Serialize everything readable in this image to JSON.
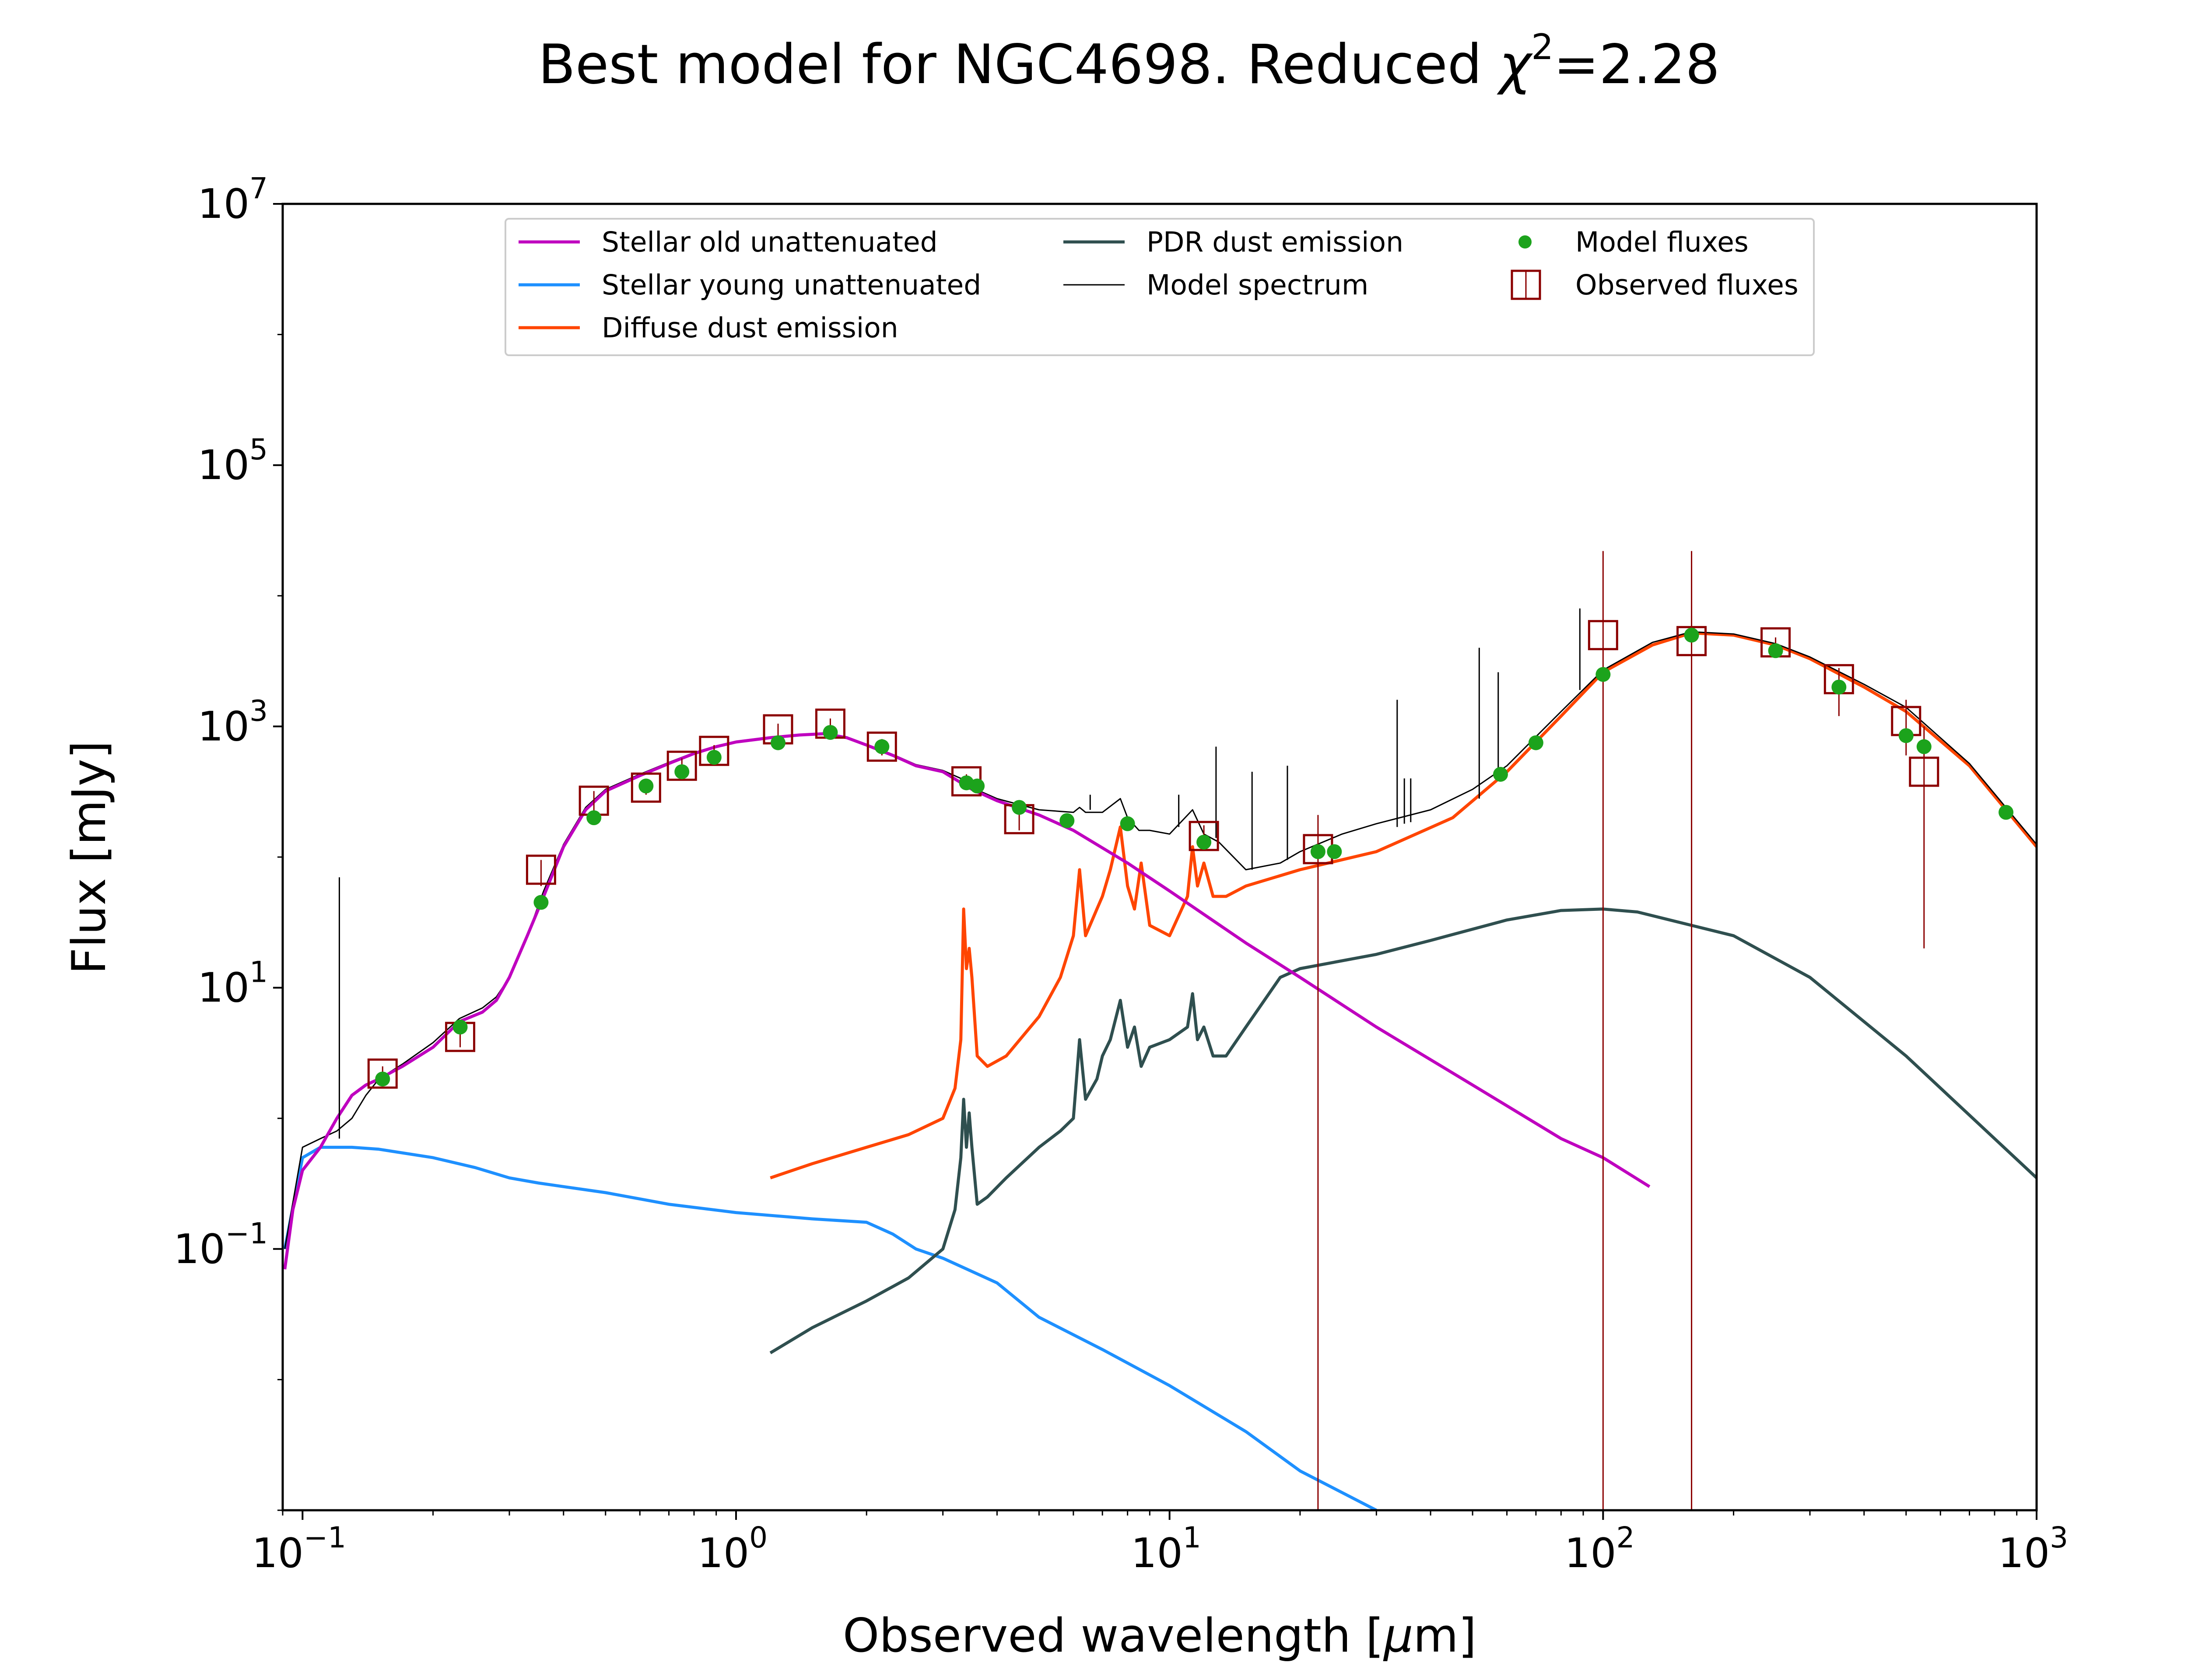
{
  "chart_data": {
    "type": "line",
    "title": "Best model for NGC4698. Reduced χ²=2.28",
    "title_parts": {
      "main": "Best model for NGC4698. Reduced ",
      "chi": "χ",
      "sup": "2",
      "tail": "=2.28"
    },
    "xlabel": "Observed wavelength [μm]",
    "xlabel_parts": {
      "main": "Observed wavelength [",
      "mu": "μ",
      "tail": "m]"
    },
    "ylabel": "Flux [mJy]",
    "x_scale": "log",
    "y_scale": "log",
    "xlim": [
      0.09,
      1000
    ],
    "ylim": [
      0.001,
      10000000
    ],
    "xticks": [
      {
        "value": 0.1,
        "base": "10",
        "exp": "−1"
      },
      {
        "value": 1,
        "base": "10",
        "exp": "0"
      },
      {
        "value": 10,
        "base": "10",
        "exp": "1"
      },
      {
        "value": 100,
        "base": "10",
        "exp": "2"
      },
      {
        "value": 1000,
        "base": "10",
        "exp": "3"
      }
    ],
    "yticks": [
      {
        "value": 0.1,
        "base": "10",
        "exp": "−1"
      },
      {
        "value": 10,
        "base": "10",
        "exp": "1"
      },
      {
        "value": 1000,
        "base": "10",
        "exp": "3"
      },
      {
        "value": 100000,
        "base": "10",
        "exp": "5"
      },
      {
        "value": 10000000,
        "base": "10",
        "exp": "7"
      }
    ],
    "legend_position": "top-center",
    "legend": [
      {
        "key": "stellar_old",
        "label": "Stellar old unattenuated"
      },
      {
        "key": "stellar_young",
        "label": "Stellar young unattenuated"
      },
      {
        "key": "diffuse_dust",
        "label": "Diffuse dust emission"
      },
      {
        "key": "pdr_dust",
        "label": "PDR dust emission"
      },
      {
        "key": "model_spectrum",
        "label": "Model spectrum"
      },
      {
        "key": "model_fluxes",
        "label": "Model fluxes"
      },
      {
        "key": "observed_fluxes",
        "label": "Observed fluxes"
      }
    ],
    "colors": {
      "stellar_old": "#bf00bf",
      "stellar_young": "#1e90ff",
      "diffuse_dust": "#ff4500",
      "pdr_dust": "#2f4f4f",
      "model_spectrum": "#000000",
      "model_fluxes": "#1ca31c",
      "observed_fluxes": "#8b0000"
    },
    "series": [
      {
        "key": "stellar_old",
        "x": [
          0.091,
          0.095,
          0.1,
          0.11,
          0.12,
          0.13,
          0.14,
          0.15,
          0.17,
          0.2,
          0.23,
          0.26,
          0.28,
          0.3,
          0.33,
          0.36,
          0.4,
          0.45,
          0.5,
          0.6,
          0.7,
          0.8,
          0.9,
          1.0,
          1.2,
          1.4,
          1.6,
          1.8,
          2.0,
          2.3,
          2.6,
          3.0,
          3.5,
          4.0,
          5.0,
          6.0,
          8.0,
          10,
          15,
          20,
          30,
          50,
          80,
          100,
          128
        ],
        "y": [
          0.07,
          0.2,
          0.4,
          0.6,
          1.0,
          1.5,
          1.8,
          2.0,
          2.5,
          3.5,
          5.5,
          6.5,
          8.0,
          12,
          25,
          50,
          120,
          230,
          320,
          420,
          520,
          620,
          700,
          760,
          820,
          860,
          880,
          820,
          720,
          600,
          500,
          450,
          330,
          270,
          210,
          160,
          90,
          55,
          22,
          12,
          5,
          1.8,
          0.7,
          0.5,
          0.3
        ]
      },
      {
        "key": "stellar_young",
        "x": [
          0.091,
          0.1,
          0.11,
          0.13,
          0.15,
          0.2,
          0.25,
          0.3,
          0.35,
          0.4,
          0.5,
          0.7,
          1.0,
          1.5,
          2.0,
          2.3,
          2.6,
          3.0,
          4.0,
          5.0,
          7.0,
          10,
          15,
          20,
          30
        ],
        "y": [
          0.1,
          0.5,
          0.6,
          0.6,
          0.58,
          0.5,
          0.42,
          0.35,
          0.32,
          0.3,
          0.27,
          0.22,
          0.19,
          0.17,
          0.16,
          0.13,
          0.1,
          0.085,
          0.055,
          0.03,
          0.017,
          0.009,
          0.004,
          0.002,
          0.001
        ]
      },
      {
        "key": "diffuse_dust",
        "x": [
          1.2,
          1.5,
          2.0,
          2.5,
          3.0,
          3.2,
          3.3,
          3.35,
          3.4,
          3.45,
          3.5,
          3.6,
          3.8,
          4.2,
          5.0,
          5.6,
          6.0,
          6.2,
          6.4,
          6.8,
          7.0,
          7.3,
          7.7,
          8.0,
          8.3,
          8.6,
          9.0,
          10,
          11,
          11.3,
          11.6,
          12,
          12.6,
          13.5,
          15,
          20,
          30,
          45,
          60,
          80,
          100,
          130,
          160,
          200,
          250,
          300,
          400,
          500,
          700,
          1000
        ],
        "y": [
          0.35,
          0.45,
          0.6,
          0.75,
          1.0,
          1.7,
          4.0,
          40,
          14,
          20,
          12,
          3.0,
          2.5,
          3.0,
          6.0,
          12,
          25,
          80,
          25,
          40,
          50,
          80,
          170,
          60,
          40,
          90,
          30,
          25,
          50,
          120,
          60,
          90,
          50,
          50,
          60,
          80,
          110,
          200,
          450,
          1200,
          2600,
          4200,
          5200,
          5000,
          4200,
          3300,
          2000,
          1300,
          500,
          120
        ]
      },
      {
        "key": "pdr_dust",
        "x": [
          1.2,
          1.5,
          2.0,
          2.5,
          3.0,
          3.2,
          3.3,
          3.35,
          3.4,
          3.45,
          3.5,
          3.6,
          3.8,
          4.2,
          5.0,
          5.6,
          6.0,
          6.2,
          6.4,
          6.8,
          7.0,
          7.3,
          7.7,
          8.0,
          8.3,
          8.6,
          9.0,
          10,
          11,
          11.3,
          11.6,
          12,
          12.6,
          13.5,
          15,
          18,
          20,
          30,
          40,
          60,
          80,
          100,
          120,
          160,
          200,
          300,
          500,
          1000
        ],
        "y": [
          0.016,
          0.025,
          0.04,
          0.06,
          0.1,
          0.2,
          0.5,
          1.4,
          0.6,
          1.1,
          0.6,
          0.22,
          0.25,
          0.35,
          0.6,
          0.8,
          1.0,
          4.0,
          1.4,
          2.0,
          3.0,
          4.0,
          8.0,
          3.5,
          5.0,
          2.5,
          3.5,
          4.0,
          5.0,
          9.0,
          4.0,
          5.0,
          3.0,
          3.0,
          5.0,
          12,
          14,
          18,
          23,
          33,
          39,
          40,
          38,
          30,
          25,
          12,
          3.0,
          0.35
        ]
      },
      {
        "key": "model_spectrum",
        "x": [
          0.091,
          0.1,
          0.11,
          0.12,
          0.13,
          0.14,
          0.15,
          0.17,
          0.2,
          0.23,
          0.26,
          0.28,
          0.3,
          0.33,
          0.36,
          0.4,
          0.45,
          0.5,
          0.6,
          0.7,
          0.8,
          0.9,
          1.0,
          1.2,
          1.4,
          1.6,
          1.8,
          2.0,
          2.3,
          2.6,
          3.0,
          3.3,
          3.5,
          4.0,
          5.0,
          6.0,
          6.2,
          6.4,
          7.0,
          7.7,
          8.0,
          8.5,
          9.0,
          10,
          11.3,
          12,
          13,
          15,
          18,
          20,
          25,
          30,
          40,
          50,
          60,
          80,
          100,
          130,
          160,
          200,
          250,
          300,
          400,
          500,
          700,
          1000
        ],
        "y": [
          0.1,
          0.6,
          0.7,
          0.8,
          1.0,
          1.5,
          2.0,
          2.6,
          3.8,
          5.8,
          7.0,
          8.5,
          12,
          25,
          55,
          125,
          240,
          330,
          430,
          530,
          630,
          710,
          770,
          830,
          870,
          890,
          830,
          730,
          610,
          510,
          460,
          400,
          340,
          280,
          230,
          220,
          240,
          220,
          220,
          280,
          200,
          160,
          160,
          150,
          230,
          150,
          130,
          80,
          90,
          110,
          150,
          180,
          230,
          330,
          500,
          1300,
          2700,
          4400,
          5300,
          5100,
          4300,
          3400,
          2100,
          1400,
          520,
          125
        ]
      }
    ],
    "spectrum_lines": [
      {
        "x": 0.1216,
        "y_low": 0.7,
        "y_high": 70
      },
      {
        "x": 6.56,
        "y_low": 230,
        "y_high": 300
      },
      {
        "x": 10.5,
        "y_low": 170,
        "y_high": 300
      },
      {
        "x": 12.8,
        "y_low": 140,
        "y_high": 700
      },
      {
        "x": 15.5,
        "y_low": 80,
        "y_high": 450
      },
      {
        "x": 18.7,
        "y_low": 95,
        "y_high": 500
      },
      {
        "x": 33.5,
        "y_low": 170,
        "y_high": 1600
      },
      {
        "x": 34.8,
        "y_low": 180,
        "y_high": 400
      },
      {
        "x": 36.0,
        "y_low": 185,
        "y_high": 400
      },
      {
        "x": 51.8,
        "y_low": 280,
        "y_high": 4000
      },
      {
        "x": 57.3,
        "y_low": 400,
        "y_high": 2600
      },
      {
        "x": 88.4,
        "y_low": 1900,
        "y_high": 8000
      }
    ],
    "model_fluxes": {
      "x": [
        0.153,
        0.231,
        0.355,
        0.47,
        0.62,
        0.75,
        0.89,
        1.25,
        1.65,
        2.17,
        3.4,
        3.6,
        4.5,
        5.8,
        8.0,
        12,
        22,
        24,
        58,
        70,
        100,
        160,
        250,
        350,
        500,
        550,
        850
      ],
      "y": [
        2.0,
        5.0,
        45,
        200,
        350,
        450,
        580,
        750,
        900,
        700,
        370,
        350,
        240,
        190,
        180,
        130,
        110,
        110,
        430,
        750,
        2500,
        5000,
        3800,
        2000,
        850,
        700,
        220
      ]
    },
    "observed_fluxes": {
      "x": [
        0.153,
        0.231,
        0.355,
        0.47,
        0.62,
        0.75,
        0.89,
        1.25,
        1.65,
        2.17,
        3.4,
        4.5,
        12,
        22,
        100,
        160,
        250,
        350,
        500,
        550
      ],
      "y": [
        2.2,
        4.2,
        80,
        270,
        340,
        500,
        650,
        950,
        1050,
        700,
        380,
        195,
        145,
        115,
        5000,
        4500,
        4400,
        2300,
        1100,
        450
      ],
      "err_low": [
        1.9,
        3.5,
        60,
        220,
        300,
        430,
        580,
        850,
        950,
        600,
        330,
        160,
        115,
        0.001,
        0.001,
        0.001,
        4000,
        1200,
        600,
        20
      ],
      "err_high": [
        2.5,
        5.0,
        95,
        320,
        380,
        570,
        720,
        1050,
        1150,
        800,
        430,
        235,
        175,
        210,
        22000,
        22000,
        4800,
        2800,
        1600,
        1000
      ]
    }
  }
}
